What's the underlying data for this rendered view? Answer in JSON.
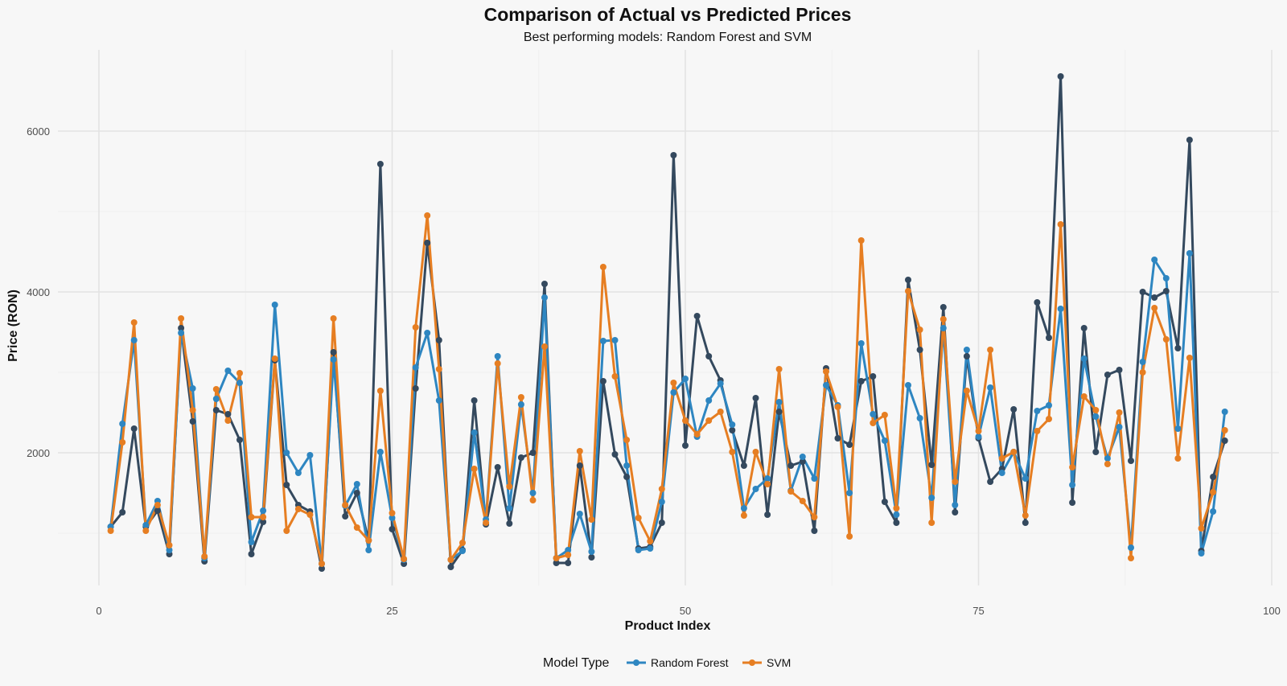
{
  "chart_data": {
    "type": "line",
    "title": "Comparison of Actual vs Predicted Prices",
    "subtitle": "Best performing models: Random Forest and SVM",
    "xlabel": "Product Index",
    "ylabel": "Price (RON)",
    "xlim": [
      0,
      100
    ],
    "ylim": [
      520,
      6700
    ],
    "xticks": [
      0,
      25,
      50,
      75,
      100
    ],
    "yticks": [
      2000,
      4000,
      6000
    ],
    "grid": true,
    "legend": {
      "title": "Model Type",
      "position": "bottom",
      "entries": [
        "Random Forest",
        "SVM"
      ]
    },
    "colors": {
      "actual": "#34495e",
      "random_forest": "#2e86c1",
      "svm": "#e67e22"
    },
    "x": [
      1,
      2,
      3,
      4,
      5,
      6,
      7,
      8,
      9,
      10,
      11,
      12,
      13,
      14,
      15,
      16,
      17,
      18,
      19,
      20,
      21,
      22,
      23,
      24,
      25,
      26,
      27,
      28,
      29,
      30,
      31,
      32,
      33,
      34,
      35,
      36,
      37,
      38,
      39,
      40,
      41,
      42,
      43,
      44,
      45,
      46,
      47,
      48,
      49,
      50,
      51,
      52,
      53,
      54,
      55,
      56,
      57,
      58,
      59,
      60,
      61,
      62,
      63,
      64,
      65,
      66,
      67,
      68,
      69,
      70,
      71,
      72,
      73,
      74,
      75,
      76,
      77,
      78,
      79,
      80,
      81,
      82,
      83,
      84,
      85,
      86,
      87,
      88,
      89,
      90,
      91,
      92,
      93,
      94,
      95,
      96
    ],
    "actual_values": [
      1080,
      1260,
      2300,
      1080,
      1280,
      740,
      3550,
      2390,
      650,
      2530,
      2480,
      2160,
      740,
      1140,
      3150,
      1600,
      1350,
      1270,
      560,
      3250,
      1210,
      1500,
      910,
      5590,
      1050,
      620,
      2800,
      4610,
      3400,
      580,
      790,
      2650,
      1110,
      1820,
      1120,
      1940,
      2000,
      4100,
      630,
      630,
      1840,
      700,
      2890,
      1980,
      1700,
      810,
      830,
      1130,
      5700,
      2090,
      3700,
      3200,
      2900,
      2280,
      1840,
      2680,
      1230,
      2510,
      1840,
      1890,
      1030,
      3050,
      2180,
      2100,
      2890,
      2950,
      1390,
      1130,
      4150,
      3280,
      1850,
      3810,
      1260,
      3200,
      2180,
      1640,
      1800,
      2540,
      1130,
      3870,
      3430,
      6680,
      1380,
      3550,
      2010,
      2970,
      3030,
      1900,
      4000,
      3930,
      4010,
      3300,
      5890,
      780,
      1700,
      2150
    ],
    "series": [
      {
        "name": "Random Forest",
        "values": [
          1080,
          2360,
          3400,
          1100,
          1400,
          790,
          3490,
          2800,
          690,
          2670,
          3020,
          2870,
          890,
          1280,
          3840,
          2000,
          1750,
          1970,
          620,
          3160,
          1340,
          1610,
          790,
          2010,
          1190,
          670,
          3060,
          3490,
          2650,
          670,
          780,
          2250,
          1170,
          3200,
          1310,
          2600,
          1500,
          3930,
          690,
          790,
          1240,
          770,
          3390,
          3400,
          1840,
          790,
          810,
          1390,
          2750,
          2920,
          2200,
          2650,
          2860,
          2350,
          1310,
          1550,
          1680,
          2630,
          1530,
          1950,
          1680,
          2840,
          2590,
          1500,
          3360,
          2480,
          2150,
          1230,
          2840,
          2430,
          1440,
          3550,
          1350,
          3280,
          2200,
          2810,
          1750,
          2010,
          1680,
          2520,
          2590,
          3790,
          1600,
          3170,
          2450,
          1930,
          2320,
          820,
          3130,
          4400,
          4170,
          2300,
          4480,
          750,
          1270,
          2510
        ]
      },
      {
        "name": "SVM",
        "values": [
          1030,
          2130,
          3620,
          1030,
          1350,
          850,
          3670,
          2530,
          710,
          2790,
          2400,
          2990,
          1200,
          1200,
          3170,
          1030,
          1300,
          1230,
          620,
          3670,
          1350,
          1070,
          910,
          2770,
          1250,
          680,
          3560,
          4950,
          3040,
          670,
          880,
          1800,
          1130,
          3110,
          1580,
          2690,
          1410,
          3320,
          690,
          730,
          2020,
          1170,
          4310,
          2950,
          2160,
          1190,
          900,
          1550,
          2870,
          2400,
          2230,
          2400,
          2510,
          2010,
          1220,
          2010,
          1610,
          3040,
          1520,
          1400,
          1200,
          3010,
          2570,
          960,
          4640,
          2370,
          2470,
          1310,
          4010,
          3530,
          1130,
          3660,
          1640,
          2770,
          2270,
          3280,
          1930,
          2010,
          1220,
          2270,
          2420,
          4840,
          1820,
          2700,
          2530,
          1860,
          2500,
          690,
          3000,
          3800,
          3410,
          1930,
          3180,
          1060,
          1510,
          2280
        ]
      }
    ]
  }
}
